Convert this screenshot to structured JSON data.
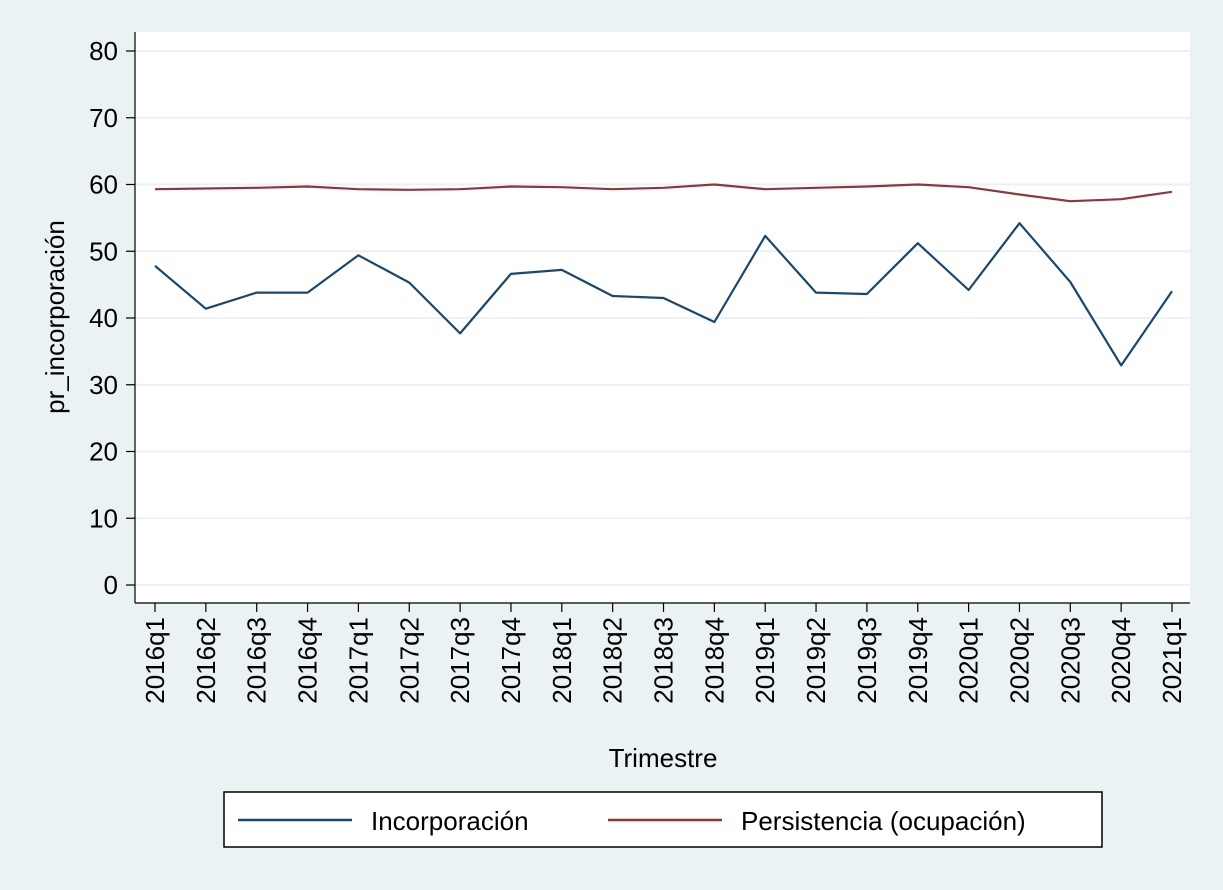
{
  "chart_data": {
    "type": "line",
    "title": "",
    "xlabel": "Trimestre",
    "ylabel": "pr_incorporación",
    "ylim": [
      0,
      80
    ],
    "yticks": [
      0,
      10,
      20,
      30,
      40,
      50,
      60,
      70,
      80
    ],
    "grid": true,
    "legend_position": "bottom",
    "categories": [
      "2016q1",
      "2016q2",
      "2016q3",
      "2016q4",
      "2017q1",
      "2017q2",
      "2017q3",
      "2017q4",
      "2018q1",
      "2018q2",
      "2018q3",
      "2018q4",
      "2019q1",
      "2019q2",
      "2019q3",
      "2019q4",
      "2020q1",
      "2020q2",
      "2020q3",
      "2020q4",
      "2021q1"
    ],
    "series": [
      {
        "name": "Incorporación",
        "color": "#1a476f",
        "values": [
          47.8,
          41.4,
          43.8,
          43.8,
          49.4,
          45.3,
          37.7,
          46.6,
          47.2,
          43.3,
          43.0,
          39.4,
          52.3,
          43.8,
          43.6,
          51.2,
          44.2,
          54.2,
          45.4,
          32.9,
          44.0
        ]
      },
      {
        "name": "Persistencia (ocupación)",
        "color": "#90353b",
        "values": [
          59.3,
          59.4,
          59.5,
          59.7,
          59.3,
          59.2,
          59.3,
          59.7,
          59.6,
          59.3,
          59.5,
          60.0,
          59.3,
          59.5,
          59.7,
          60.0,
          59.6,
          58.5,
          57.5,
          57.8,
          58.9
        ]
      }
    ]
  }
}
